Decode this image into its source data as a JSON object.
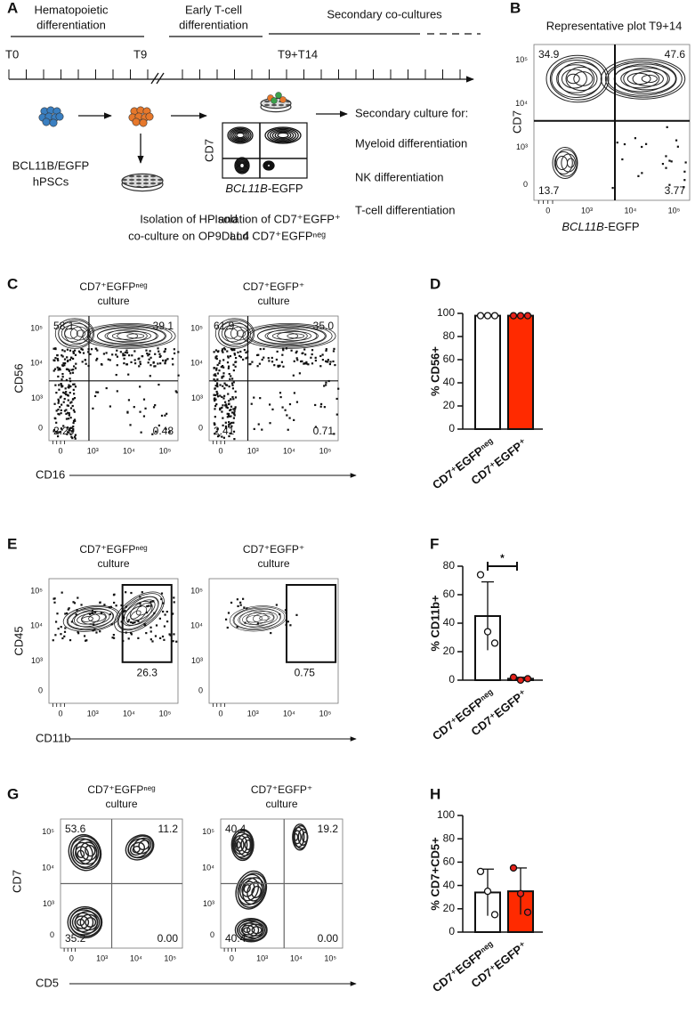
{
  "panel_labels": [
    "A",
    "B",
    "C",
    "D",
    "E",
    "F",
    "G",
    "H"
  ],
  "schematic": {
    "phases": [
      [
        "Hematopoietic",
        "differentiation"
      ],
      [
        "Early T-cell",
        "differentiation"
      ],
      [
        "Secondary co-cultures"
      ]
    ],
    "timepoints": [
      "T0",
      "T9",
      "T9+T14"
    ],
    "start_cells": [
      "BCL11B/EGFP",
      "hPSCs"
    ],
    "step1": [
      "Isolation of HP and",
      "co-culture on OP9DLL4"
    ],
    "step2": [
      "Isolation of CD7⁺EGFP⁺",
      "and CD7⁺EGFPⁿᵉᵍ"
    ],
    "mini_plot": {
      "ylabel": "CD7",
      "xlabel_italic": "BCL11B",
      "xlabel": "-EGFP"
    },
    "secondary": [
      "Secondary culture for:",
      "Myeloid differentiation",
      "NK differentiation",
      "T-cell differentiation"
    ]
  },
  "flow_panels": [
    {
      "title": "Representative plot T9+14",
      "ylabel": "CD7",
      "xlabel_italic": "BCL11B",
      "xlabel": "-EGFP",
      "yticks": [
        "10⁵",
        "10⁴",
        "10³",
        "0"
      ],
      "xticks": [
        "0",
        "10³",
        "10⁴",
        "10⁵"
      ],
      "plots": [
        {
          "quadrants": [
            "34.9",
            "47.6",
            "13.7",
            "3.77"
          ]
        }
      ]
    },
    {
      "ylabel": "CD56",
      "xlabel": "CD16",
      "yticks": [
        "10⁵",
        "10⁴",
        "10³",
        "0"
      ],
      "xticks": [
        "0",
        "10³",
        "10⁴",
        "10⁵"
      ],
      "plots": [
        {
          "title": [
            "CD7⁺EGFPⁿᵉᵍ",
            "culture"
          ],
          "quadrants": [
            "58.1",
            "39.1",
            "2.28",
            "0.48"
          ]
        },
        {
          "title": [
            "CD7⁺EGFP⁺",
            "culture"
          ],
          "quadrants": [
            "61.9",
            "35.0",
            "2.41",
            "0.71"
          ]
        }
      ]
    },
    {
      "ylabel": "CD45",
      "xlabel": "CD11b",
      "yticks": [
        "10⁵",
        "10⁴",
        "10³",
        "0"
      ],
      "xticks": [
        "0",
        "10³",
        "10⁴",
        "10⁵"
      ],
      "plots": [
        {
          "title": [
            "CD7⁺EGFPⁿᵉᵍ",
            "culture"
          ],
          "gate": "26.3"
        },
        {
          "title": [
            "CD7⁺EGFP⁺",
            "culture"
          ],
          "gate": "0.75"
        }
      ]
    },
    {
      "ylabel": "CD7",
      "xlabel": "CD5",
      "yticks": [
        "10⁵",
        "10⁴",
        "10³",
        "0"
      ],
      "xticks": [
        "0",
        "10³",
        "10⁴",
        "10⁵"
      ],
      "plots": [
        {
          "title": [
            "CD7⁺EGFPⁿᵉᵍ",
            "culture"
          ],
          "quadrants": [
            "53.6",
            "11.2",
            "35.2",
            "0.00"
          ]
        },
        {
          "title": [
            "CD7⁺EGFP⁺",
            "culture"
          ],
          "quadrants": [
            "40.4",
            "19.2",
            "40.4",
            "0.00"
          ]
        }
      ]
    }
  ],
  "chart_data": [
    {
      "type": "bar",
      "ylabel": "% CD56+",
      "categories": [
        "CD7⁺EGFPⁿᵉᵍ",
        "CD7⁺EGFP⁺"
      ],
      "values": [
        98,
        98
      ],
      "points": [
        [
          98,
          98,
          98
        ],
        [
          98,
          98,
          98
        ]
      ],
      "colors": [
        "#ffffff",
        "#ff2a00"
      ],
      "point_colors": [
        "#ffffff",
        "#e8221b"
      ],
      "ylim": [
        0,
        100
      ],
      "yticks": [
        0,
        20,
        40,
        60,
        80,
        100
      ]
    },
    {
      "type": "bar",
      "ylabel": "% CD11b+",
      "categories": [
        "CD7⁺EGFPⁿᵉᵍ",
        "CD7⁺EGFP⁺"
      ],
      "values": [
        45,
        1
      ],
      "errors": [
        24,
        1
      ],
      "points": [
        [
          74,
          34,
          26
        ],
        [
          2,
          0,
          1
        ]
      ],
      "colors": [
        "#ffffff",
        "#ff2a00"
      ],
      "point_colors": [
        "#ffffff",
        "#e8221b"
      ],
      "ylim": [
        0,
        80
      ],
      "yticks": [
        0,
        20,
        40,
        60,
        80
      ],
      "annotation": "*"
    },
    {
      "type": "bar",
      "ylabel": "% CD7+CD5+",
      "categories": [
        "CD7⁺EGFPⁿᵉᵍ",
        "CD7⁺EGFP⁺"
      ],
      "values": [
        34,
        35
      ],
      "errors": [
        20,
        20
      ],
      "points": [
        [
          52,
          35,
          15
        ],
        [
          55,
          33,
          17
        ]
      ],
      "colors": [
        "#ffffff",
        "#ff2a00"
      ],
      "point_colors": [
        "#ffffff",
        "#e8221b"
      ],
      "ylim": [
        0,
        100
      ],
      "yticks": [
        0,
        20,
        40,
        60,
        80,
        100
      ]
    }
  ]
}
